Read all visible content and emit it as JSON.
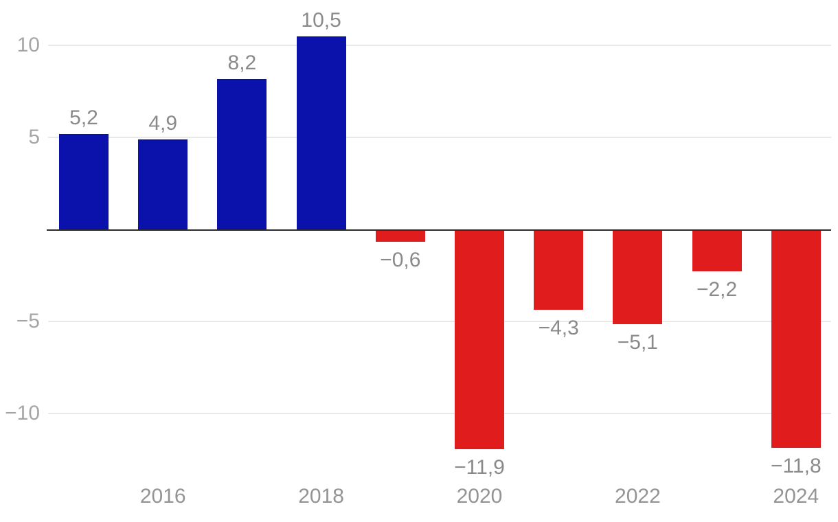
{
  "chart_data": {
    "type": "bar",
    "x": [
      2015,
      2016,
      2017,
      2018,
      2019,
      2020,
      2021,
      2022,
      2023,
      2024
    ],
    "values": [
      5.2,
      4.9,
      8.2,
      10.5,
      -0.6,
      -11.9,
      -4.3,
      -5.1,
      -2.2,
      -11.8
    ],
    "bar_labels": [
      "5,2",
      "4,9",
      "8,2",
      "10,5",
      "−0,6",
      "−11,9",
      "−4,3",
      "−5,1",
      "−2,2",
      "−11,8"
    ],
    "x_ticks": [
      2016,
      2018,
      2020,
      2022,
      2024
    ],
    "x_tick_labels": [
      "2016",
      "2018",
      "2020",
      "2022",
      "2024"
    ],
    "y_ticks": [
      10,
      5,
      -5,
      -10
    ],
    "y_tick_labels": [
      "10",
      "5",
      "−5",
      "−10"
    ],
    "ylim": [
      -13,
      12.5
    ],
    "zero_baseline": 0,
    "grid": "horizontal",
    "legend": "none",
    "title": "",
    "xlabel": "",
    "ylabel": "",
    "colors": {
      "positive_bar": "#0b12ab",
      "negative_bar": "#e11c1c",
      "gridline": "#e9e9e9",
      "zero_line": "#2b2b2b",
      "y_tick_label": "#a6a6a6",
      "x_tick_label": "#949494",
      "value_label": "#8a8a8a",
      "background": "#ffffff"
    }
  }
}
